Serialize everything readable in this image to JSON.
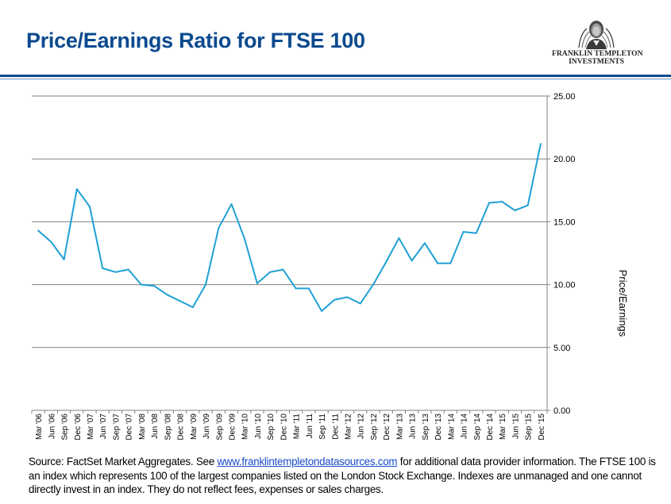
{
  "header": {
    "title": "Price/Earnings Ratio for FTSE 100",
    "logo_line1": "FRANKLIN TEMPLETON",
    "logo_line2": "INVESTMENTS"
  },
  "colors": {
    "title": "#0b4a8f",
    "line": "#1fa0d4",
    "grid": "#808080",
    "link": "#1a49c9"
  },
  "chart_data": {
    "type": "line",
    "title": "",
    "xlabel": "",
    "ylabel": "Price/Earnings",
    "ylim": [
      0,
      25
    ],
    "yticks": [
      "0.00",
      "5.00",
      "10.00",
      "15.00",
      "20.00",
      "25.00"
    ],
    "y_axis_position": "right",
    "grid": true,
    "categories": [
      "Mar '06",
      "Jun '06",
      "Sep '06",
      "Dec '06",
      "Mar '07",
      "Jun '07",
      "Sep '07",
      "Dec '07",
      "Mar '08",
      "Jun '08",
      "Sep '08",
      "Dec '08",
      "Mar '09",
      "Jun '09",
      "Sep '09",
      "Dec '09",
      "Mar '10",
      "Jun '10",
      "Sep '10",
      "Dec '10",
      "Mar '11",
      "Jun '11",
      "Sep '11",
      "Dec '11",
      "Mar '12",
      "Jun '12",
      "Sep '12",
      "Dec '12",
      "Mar '13",
      "Jun '13",
      "Sep '13",
      "Dec '13",
      "Mar '14",
      "Jun '14",
      "Sep '14",
      "Dec '14",
      "Mar '15",
      "Jun '15",
      "Sep '15",
      "Dec '15"
    ],
    "values": [
      14.3,
      13.4,
      12.0,
      17.6,
      16.2,
      11.3,
      11.0,
      11.2,
      10.0,
      9.9,
      9.2,
      8.7,
      8.2,
      10.0,
      14.5,
      16.4,
      13.7,
      10.1,
      11.0,
      11.2,
      9.7,
      9.7,
      7.9,
      8.8,
      9.0,
      8.5,
      10.0,
      11.8,
      13.7,
      11.9,
      13.3,
      11.7,
      11.7,
      14.2,
      14.1,
      16.5,
      16.6,
      15.9,
      16.3,
      21.2
    ]
  },
  "footer": {
    "source_prefix": "Source: FactSet Market Aggregates. See ",
    "source_link": "www.franklintempletondatasources.com",
    "source_suffix": " for additional data provider information.",
    "disclaimer": "The FTSE 100 is an index which represents 100 of the largest companies listed on the London Stock Exchange. Indexes are unmanaged and one cannot directly invest in an index. They do not reflect fees, expenses or sales charges."
  }
}
